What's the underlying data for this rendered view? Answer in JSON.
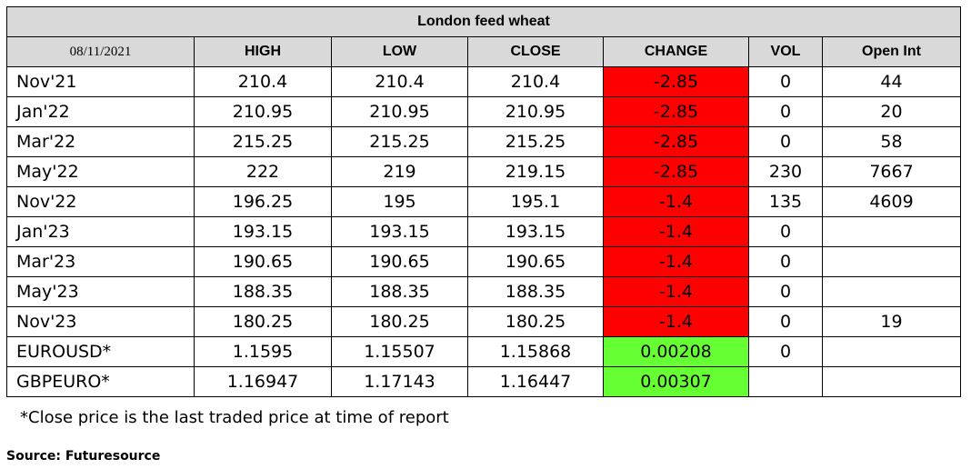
{
  "title": "London feed wheat",
  "date": "08/11/2021",
  "headers": [
    "HIGH",
    "LOW",
    "CLOSE",
    "CHANGE",
    "VOL",
    "Open Int"
  ],
  "rows": [
    {
      "name": "Nov'21",
      "high": "210.4",
      "low": "210.4",
      "close": "210.4",
      "change": "-2.85",
      "change_color": "#ff0000",
      "vol": "0",
      "oi": "44"
    },
    {
      "name": "Jan'22",
      "high": "210.95",
      "low": "210.95",
      "close": "210.95",
      "change": "-2.85",
      "change_color": "#ff0000",
      "vol": "0",
      "oi": "20"
    },
    {
      "name": "Mar'22",
      "high": "215.25",
      "low": "215.25",
      "close": "215.25",
      "change": "-2.85",
      "change_color": "#ff0000",
      "vol": "0",
      "oi": "58"
    },
    {
      "name": "May'22",
      "high": "222",
      "low": "219",
      "close": "219.15",
      "change": "-2.85",
      "change_color": "#ff0000",
      "vol": "230",
      "oi": "7667"
    },
    {
      "name": "Nov'22",
      "high": "196.25",
      "low": "195",
      "close": "195.1",
      "change": "-1.4",
      "change_color": "#ff0000",
      "vol": "135",
      "oi": "4609"
    },
    {
      "name": "Jan'23",
      "high": "193.15",
      "low": "193.15",
      "close": "193.15",
      "change": "-1.4",
      "change_color": "#ff0000",
      "vol": "0",
      "oi": ""
    },
    {
      "name": "Mar'23",
      "high": "190.65",
      "low": "190.65",
      "close": "190.65",
      "change": "-1.4",
      "change_color": "#ff0000",
      "vol": "0",
      "oi": ""
    },
    {
      "name": "May'23",
      "high": "188.35",
      "low": "188.35",
      "close": "188.35",
      "change": "-1.4",
      "change_color": "#ff0000",
      "vol": "0",
      "oi": ""
    },
    {
      "name": "Nov'23",
      "high": "180.25",
      "low": "180.25",
      "close": "180.25",
      "change": "-1.4",
      "change_color": "#ff0000",
      "vol": "0",
      "oi": "19"
    },
    {
      "name": "EUROUSD*",
      "high": "1.1595",
      "low": "1.15507",
      "close": "1.15868",
      "change": "0.00208",
      "change_color": "#66ff33",
      "vol": "0",
      "oi": ""
    },
    {
      "name": "GBPEURO*",
      "high": "1.16947",
      "low": "1.17143",
      "close": "1.16447",
      "change": "0.00307",
      "change_color": "#66ff33",
      "vol": "",
      "oi": ""
    }
  ],
  "footnote": "*Close price is the last traded price at time of report",
  "source": "Source: Futuresource"
}
